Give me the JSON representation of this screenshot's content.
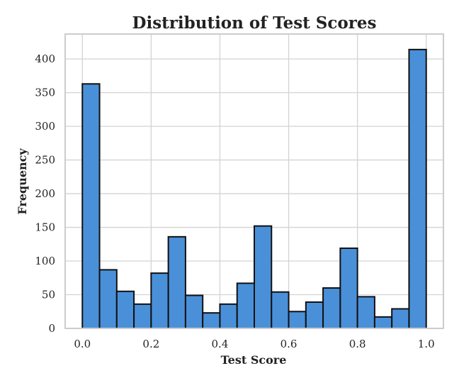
{
  "chart_data": {
    "type": "bar",
    "title": "Distribution of Test Scores",
    "xlabel": "Test Score",
    "ylabel": "Frequency",
    "xlim": [
      -0.05,
      1.05
    ],
    "ylim": [
      0,
      437
    ],
    "x_ticks": [
      0.0,
      0.2,
      0.4,
      0.6,
      0.8,
      1.0
    ],
    "x_tick_labels": [
      "0.0",
      "0.2",
      "0.4",
      "0.6",
      "0.8",
      "1.0"
    ],
    "y_ticks": [
      0,
      50,
      100,
      150,
      200,
      250,
      300,
      350,
      400
    ],
    "y_tick_labels": [
      "0",
      "50",
      "100",
      "150",
      "200",
      "250",
      "300",
      "350",
      "400"
    ],
    "grid": true,
    "legend": "none",
    "bin_edges": [
      0.0,
      0.05,
      0.1,
      0.15,
      0.2,
      0.25,
      0.3,
      0.35,
      0.4,
      0.45,
      0.5,
      0.55,
      0.6,
      0.65,
      0.7,
      0.75,
      0.8,
      0.85,
      0.9,
      0.95,
      1.0
    ],
    "values": [
      363,
      87,
      55,
      36,
      82,
      136,
      49,
      23,
      36,
      67,
      152,
      54,
      25,
      39,
      60,
      119,
      47,
      17,
      29,
      414
    ],
    "bar_color": "#4a90d9",
    "bar_edge_color": "#111111"
  }
}
